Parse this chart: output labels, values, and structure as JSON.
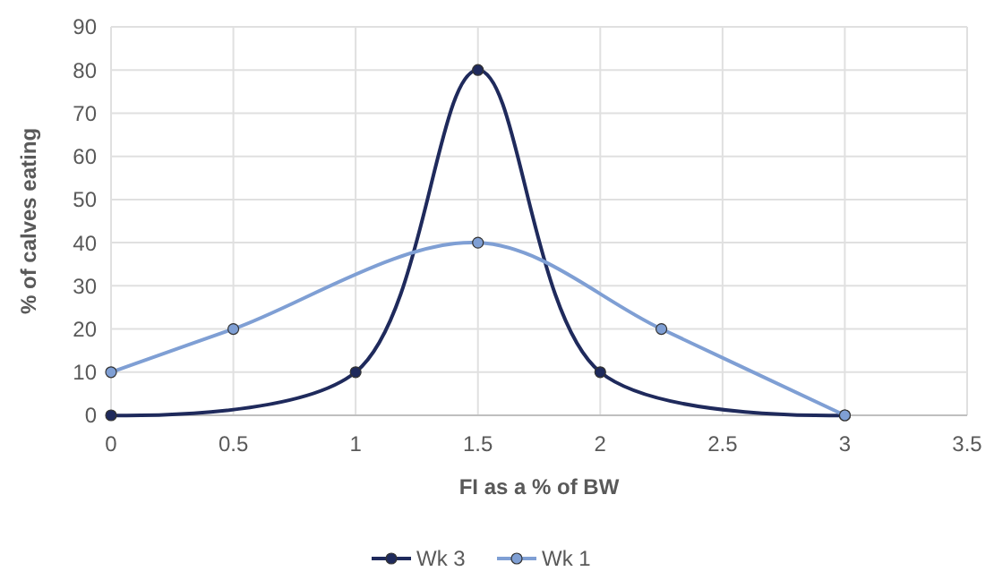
{
  "chart_data": {
    "type": "line",
    "xlabel": "FI as a % of BW",
    "ylabel": "% of calves eating",
    "xlim": [
      0,
      3.5
    ],
    "xticks": [
      0,
      0.5,
      1,
      1.5,
      2,
      2.5,
      3,
      3.5
    ],
    "ylim": [
      0,
      90
    ],
    "yticks": [
      0,
      10,
      20,
      30,
      40,
      50,
      60,
      70,
      80,
      90
    ],
    "grid": true,
    "legend": "bottom",
    "marker": "circle",
    "line_style": "solid",
    "series": [
      {
        "name": "Wk 3",
        "color": "#1f2a5c",
        "x": [
          0,
          1,
          1.5,
          2,
          3
        ],
        "values": [
          0,
          10,
          80,
          10,
          0
        ]
      },
      {
        "name": "Wk 1",
        "color": "#7f9fd4",
        "x": [
          0,
          0.5,
          1.5,
          2.25,
          3
        ],
        "values": [
          10,
          20,
          40,
          20,
          0
        ]
      }
    ]
  }
}
